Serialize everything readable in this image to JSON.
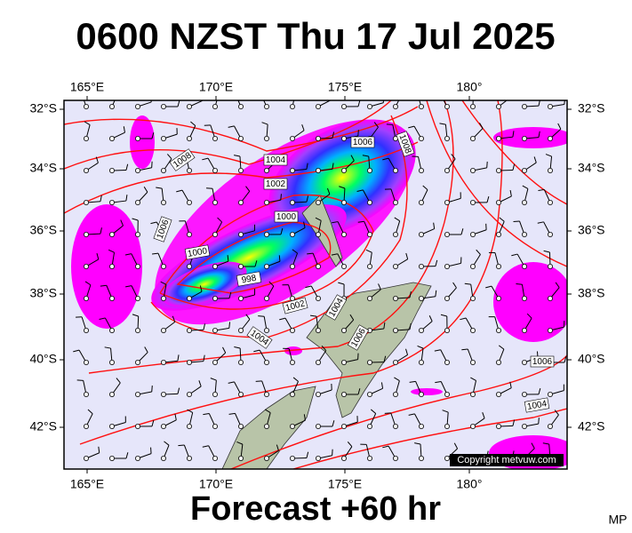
{
  "header": {
    "title": "0600 NZST Thu 17 Jul 2025"
  },
  "map": {
    "lon_labels_top": [
      "165°E",
      "170°E",
      "175°E",
      "180°"
    ],
    "lon_labels_bottom": [
      "165°E",
      "170°E",
      "175°E",
      "180°"
    ],
    "lat_labels_left": [
      "32°S",
      "34°S",
      "36°S",
      "38°S",
      "40°S",
      "42°S"
    ],
    "lat_labels_right": [
      "32°S",
      "34°S",
      "36°S",
      "38°S",
      "40°S",
      "42°S"
    ],
    "isobar_labels": [
      "1006",
      "1008",
      "1008",
      "1004",
      "1002",
      "1000",
      "1006",
      "1000",
      "998",
      "1002",
      "1004",
      "1006",
      "1004",
      "1006",
      "1004"
    ],
    "copyright": "Copyright metvuw.com"
  },
  "footer": {
    "forecast": "Forecast +60 hr",
    "initials": "MP"
  }
}
